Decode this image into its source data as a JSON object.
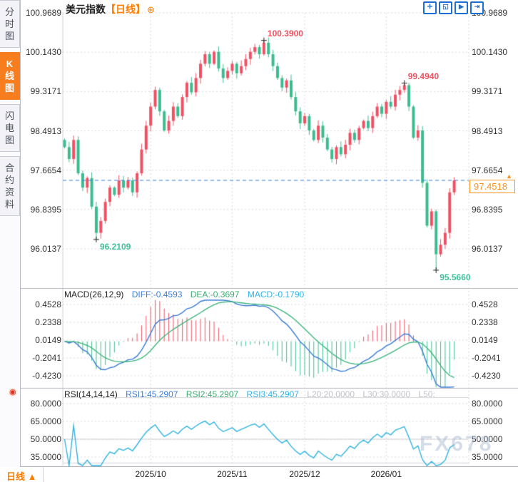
{
  "sidebar": {
    "tabs": [
      {
        "label": "分时图",
        "active": false
      },
      {
        "label": "K线图",
        "active": true
      },
      {
        "label": "闪电图",
        "active": false
      },
      {
        "label": "合约资料",
        "active": false
      }
    ]
  },
  "header": {
    "symbol": "美元指数",
    "period_tag": "【日线】",
    "add_indicator_glyph": "⊕"
  },
  "toolbar": {
    "icons": [
      {
        "name": "pan-tool",
        "glyph": "✛"
      },
      {
        "name": "zoom-reset",
        "glyph": "◱"
      },
      {
        "name": "zoom-play",
        "glyph": "▶"
      },
      {
        "name": "exit-view",
        "glyph": "⇥"
      }
    ]
  },
  "price_tag": {
    "value": "97.4518",
    "arrow": "▲"
  },
  "blink_icon_glyph": "◉",
  "macd_header": {
    "name": "MACD(26,12,9)",
    "diff": "DIFF:-0.4593",
    "dea": "DEA:-0.3697",
    "macd": "MACD:-0.1790"
  },
  "rsi_header": {
    "name": "RSI(14,14,14)",
    "rsi1": "RSI1:45.2907",
    "rsi2": "RSI2:45.2907",
    "rsi3": "RSI3:45.2907",
    "l20": "L20:20.0000",
    "l30": "L30:30.0000",
    "l50": "L50:"
  },
  "bottom_bar": {
    "period_label": "日线 ▲",
    "dates": [
      "2025/10",
      "2025/11",
      "2025/12",
      "2026/01"
    ]
  },
  "watermark": "FX678",
  "colors": {
    "candle_up": "#ef5164",
    "candle_down": "#3cbc8e",
    "diff_line": "#3a7bd5",
    "dea_line": "#3eb57d",
    "rsi_line": "#2fb3df",
    "dashed_price_line": "#2f7fd9",
    "accent_orange": "#f7931e",
    "grid": "#d9d9de",
    "separator": "#b5b5bd",
    "level_line": "#cfcfd6"
  },
  "chart_data": {
    "type": "candlestick",
    "title": "美元指数",
    "period": "日线",
    "main": {
      "ylabels": [
        "100.9689",
        "100.1430",
        "99.3171",
        "98.4913",
        "97.6654",
        "96.8395",
        "96.0137"
      ],
      "y_axis_top_value": 100.9689,
      "y_axis_step": 0.82585,
      "first_open": 98.3,
      "closes": [
        98.15,
        97.9,
        98.3,
        97.6,
        97.3,
        97.5,
        96.9,
        96.35,
        96.6,
        97.0,
        97.3,
        97.15,
        97.45,
        97.3,
        97.45,
        97.2,
        97.6,
        98.1,
        98.6,
        99.0,
        99.35,
        98.9,
        98.5,
        98.7,
        99.0,
        98.8,
        99.2,
        99.5,
        99.3,
        99.6,
        99.9,
        100.1,
        99.9,
        100.15,
        99.8,
        99.6,
        99.75,
        99.9,
        99.7,
        99.85,
        100.0,
        100.15,
        100.25,
        100.1,
        100.34,
        100.1,
        99.85,
        99.6,
        99.4,
        99.55,
        99.2,
        98.9,
        98.65,
        98.8,
        98.5,
        98.3,
        98.6,
        98.35,
        98.1,
        97.9,
        98.15,
        98.0,
        98.2,
        98.45,
        98.3,
        98.55,
        98.7,
        98.55,
        98.8,
        99.0,
        98.85,
        99.1,
        99.0,
        99.25,
        99.35,
        99.45,
        99.0,
        98.35,
        98.5,
        97.4,
        96.5,
        96.8,
        95.9,
        96.1,
        96.35,
        97.2,
        97.45
      ],
      "last_price": 97.4518,
      "annotations": [
        {
          "text": "100.3900",
          "index": 44,
          "price": 100.39,
          "dir": "high",
          "color": "up"
        },
        {
          "text": "99.4940",
          "index": 75,
          "price": 99.494,
          "dir": "high",
          "color": "up"
        },
        {
          "text": "96.2109",
          "index": 7,
          "price": 96.2109,
          "dir": "low",
          "color": "down"
        },
        {
          "text": "95.5660",
          "index": 82,
          "price": 95.566,
          "dir": "low",
          "color": "down"
        }
      ]
    },
    "macd": {
      "params": [
        26,
        12,
        9
      ],
      "ylabels": [
        "0.4528",
        "0.2338",
        "0.0149",
        "-0.2041",
        "-0.4230"
      ],
      "y_axis_top_value": 0.4528,
      "y_axis_step": 0.21895,
      "diff_last": -0.4593,
      "dea_last": -0.3697,
      "macd_last": -0.179
    },
    "rsi": {
      "params": [
        14,
        14,
        14
      ],
      "ylabels": [
        "80.0000",
        "65.0000",
        "50.0000",
        "35.0000"
      ],
      "y_axis_top_value": 80,
      "y_axis_step": 15,
      "rsi1_last": 45.2907,
      "rsi2_last": 45.2907,
      "rsi3_last": 45.2907,
      "levels": [
        50,
        30,
        20
      ]
    },
    "x_dates": [
      "2025/10",
      "2025/11",
      "2025/12",
      "2026/01"
    ],
    "month_start_indices": [
      19,
      37,
      53,
      71
    ]
  }
}
